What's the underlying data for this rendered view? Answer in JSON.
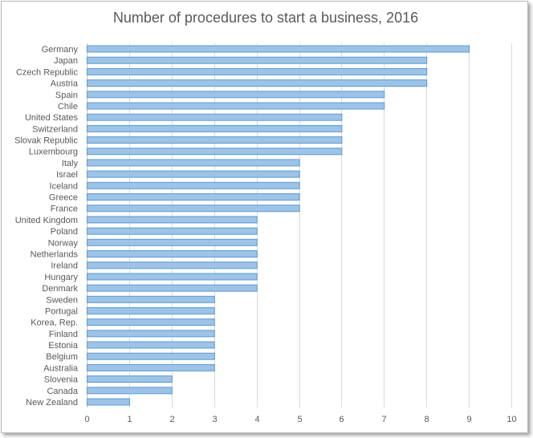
{
  "chart_data": {
    "type": "bar",
    "orientation": "horizontal",
    "title": "Number of procedures to start a business, 2016",
    "xlabel": "",
    "ylabel": "",
    "categories": [
      "Germany",
      "Japan",
      "Czech Republic",
      "Austria",
      "Spain",
      "Chile",
      "United States",
      "Switzerland",
      "Slovak Republic",
      "Luxembourg",
      "Italy",
      "Israel",
      "Iceland",
      "Greece",
      "France",
      "United Kingdom",
      "Poland",
      "Norway",
      "Netherlands",
      "Ireland",
      "Hungary",
      "Denmark",
      "Sweden",
      "Portugal",
      "Korea, Rep.",
      "Finland",
      "Estonia",
      "Belgium",
      "Australia",
      "Slovenia",
      "Canada",
      "New Zealand"
    ],
    "values": [
      9,
      8,
      8,
      8,
      7,
      7,
      6,
      6,
      6,
      6,
      5,
      5,
      5,
      5,
      5,
      4,
      4,
      4,
      4,
      4,
      4,
      4,
      3,
      3,
      3,
      3,
      3,
      3,
      3,
      2,
      2,
      1
    ],
    "xlim": [
      0,
      10
    ],
    "xticks": [
      "0",
      "1",
      "2",
      "3",
      "4",
      "5",
      "6",
      "7",
      "8",
      "9",
      "10"
    ],
    "grid": "vertical",
    "legend": "none",
    "colors": {
      "bar_fill": "#9dc3e6",
      "bar_stroke": "#5b9bd5",
      "grid": "#d9d9d9",
      "text": "#595959"
    }
  }
}
